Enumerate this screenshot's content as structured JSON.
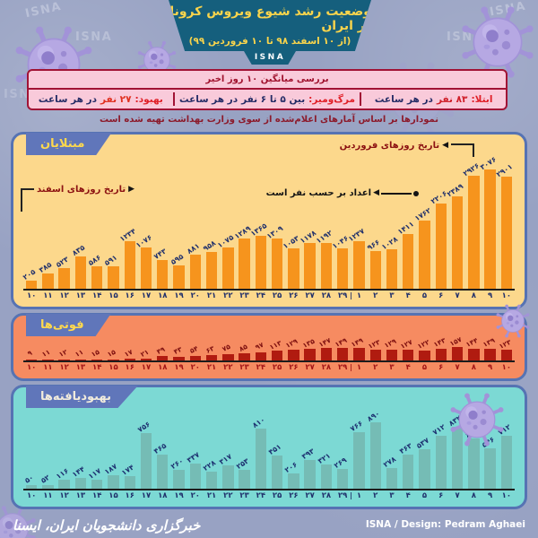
{
  "header": {
    "title": "وضعیت رشد شیوع ویروس کرونا در ایران",
    "subtitle": "(از ۱۰ اسفند ۹۸ تا ۱۰ فروردین ۹۹)",
    "logo": "ISNA"
  },
  "stats": {
    "heading": "بررسی میانگین ۱۰ روز اخیر",
    "cells": [
      {
        "label": "ابتلا:",
        "mid": "۸۳ نفر",
        "tail": "در هر ساعت",
        "mid_color": "#cf1e28"
      },
      {
        "label": "مرگ‌ومیر:",
        "mid": "بین ۵ تا ۶ نفر",
        "tail": "در هر ساعت",
        "mid_color": "#252c66"
      },
      {
        "label": "بهبود:",
        "mid": "۲۷ نفر",
        "tail": "در هر ساعت",
        "mid_color": "#e0301f"
      }
    ]
  },
  "note": "نمودارها بر اساس آمارهای اعلام‌شده از سوی وزارت بهداشت تهیه شده است",
  "annotations": {
    "esfand": "تاریخ روزهای اسفند",
    "farvardin": "تاریخ روزهای فروردین",
    "units": "اعداد بر حسب نفر است"
  },
  "chart_data": [
    {
      "type": "bar",
      "title": "مبتلایان",
      "title_color": "#ffd94d",
      "categories": [
        10,
        11,
        12,
        13,
        14,
        15,
        16,
        17,
        18,
        19,
        20,
        21,
        22,
        23,
        24,
        25,
        26,
        27,
        28,
        29,
        1,
        2,
        3,
        4,
        5,
        6,
        7,
        8,
        9,
        10
      ],
      "values": [
        205,
        385,
        523,
        835,
        586,
        591,
        1234,
        1076,
        743,
        595,
        881,
        958,
        1075,
        1289,
        1365,
        1309,
        1053,
        1178,
        1192,
        1046,
        1237,
        966,
        1028,
        1411,
        1762,
        2206,
        2389,
        2926,
        3076,
        2901
      ],
      "month_break_after_index": 19,
      "ylim": [
        0,
        3200
      ],
      "xlabel_months": "اسفند / فروردین",
      "panel_color": "#fcd88c",
      "bar_color": "#f6941d",
      "value_label_color": "#20306b",
      "axis_label_color": "#20306b"
    },
    {
      "type": "bar",
      "title": "فوتی‌ها",
      "title_color": "#ffd94d",
      "categories": [
        10,
        11,
        12,
        13,
        14,
        15,
        16,
        17,
        18,
        19,
        20,
        21,
        22,
        23,
        24,
        25,
        26,
        27,
        28,
        29,
        1,
        2,
        3,
        4,
        5,
        6,
        7,
        8,
        9,
        10
      ],
      "values": [
        9,
        11,
        12,
        11,
        15,
        15,
        17,
        21,
        49,
        43,
        54,
        63,
        75,
        85,
        97,
        113,
        129,
        135,
        147,
        149,
        149,
        123,
        129,
        127,
        122,
        143,
        157,
        144,
        139,
        123
      ],
      "month_break_after_index": 19,
      "ylim": [
        0,
        160
      ],
      "xlabel_months": "اسفند / فروردین",
      "panel_color": "#f68b61",
      "bar_color": "#b01b10",
      "value_label_color": "#7d0f0f",
      "axis_label_color": "#a31616"
    },
    {
      "type": "bar",
      "title": "بهبودیافته‌ها",
      "title_color": "#f2ecdc",
      "categories": [
        10,
        11,
        12,
        13,
        14,
        15,
        16,
        17,
        18,
        19,
        20,
        21,
        22,
        23,
        24,
        25,
        26,
        27,
        28,
        29,
        1,
        2,
        3,
        4,
        5,
        6,
        7,
        8,
        9,
        10
      ],
      "values": [
        50,
        52,
        116,
        144,
        117,
        187,
        174,
        756,
        465,
        260,
        337,
        228,
        317,
        253,
        810,
        451,
        206,
        393,
        321,
        269,
        766,
        890,
        278,
        463,
        537,
        712,
        832,
        676,
        546,
        712
      ],
      "month_break_after_index": 19,
      "ylim": [
        0,
        920
      ],
      "xlabel_months": "اسفند / فروردین",
      "panel_color": "#7cd9d4",
      "bar_color": "#75bcb5",
      "value_label_color": "#1d3070",
      "axis_label_color": "#20306b"
    }
  ],
  "footer": {
    "agency": "خبرگزاری دانشجویان ایران، ایسنا",
    "credit": "ISNA / Design: Pedram Aghaei"
  },
  "decor": {
    "watermark": "ISNA"
  },
  "colors": {
    "background": "#98a2c3",
    "banner": "#155f7d",
    "banner_text": "#f9d44c",
    "stats_bg": "#f9cada",
    "stats_border": "#a11335",
    "note_text": "#8c1b2c",
    "panel_border": "#5673b3",
    "tab_bg": "#6076ba",
    "footer_text": "#ffffff"
  }
}
